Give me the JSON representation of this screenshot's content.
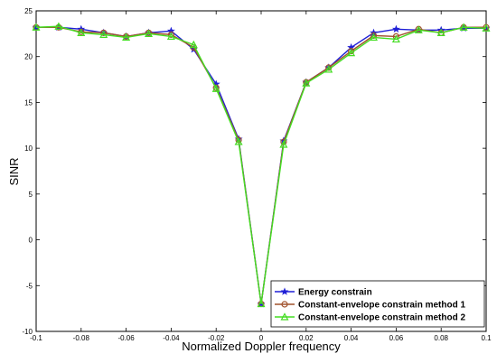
{
  "chart_data": {
    "type": "line",
    "title": "",
    "xlabel": "Normalized Doppler frequency",
    "ylabel": "SINR",
    "xlim": [
      -0.1,
      0.1
    ],
    "ylim": [
      -10,
      25
    ],
    "xticks": [
      -0.1,
      -0.08,
      -0.06,
      -0.04,
      -0.02,
      0,
      0.02,
      0.04,
      0.06,
      0.08,
      0.1
    ],
    "xtick_labels": [
      "-0.1",
      "-0.08",
      "-0.06",
      "-0.04",
      "-0.02",
      "0",
      "0.02",
      "0.04",
      "0.06",
      "0.08",
      "0.1"
    ],
    "yticks": [
      -10,
      -5,
      0,
      5,
      10,
      15,
      20,
      25
    ],
    "ytick_labels": [
      "-10",
      "-5",
      "0",
      "5",
      "10",
      "15",
      "20",
      "25"
    ],
    "grid": false,
    "legend_position": "bottom-right",
    "x": [
      -0.1,
      -0.09,
      -0.08,
      -0.07,
      -0.06,
      -0.05,
      -0.04,
      -0.03,
      -0.02,
      -0.01,
      0,
      0.01,
      0.02,
      0.03,
      0.04,
      0.05,
      0.06,
      0.07,
      0.08,
      0.09,
      0.1
    ],
    "series": [
      {
        "name": "Energy constrain",
        "color": "#1f1fd6",
        "marker": "star",
        "values": [
          23.2,
          23.2,
          23.0,
          22.6,
          22.2,
          22.6,
          22.8,
          20.8,
          17.0,
          11.0,
          -7.0,
          10.8,
          17.2,
          18.8,
          21.0,
          22.6,
          23.0,
          22.9,
          22.9,
          23.1,
          23.1
        ]
      },
      {
        "name": "Constant-envelope constrain method 1",
        "color": "#a0522d",
        "marker": "circle",
        "values": [
          23.2,
          23.2,
          22.7,
          22.6,
          22.2,
          22.6,
          22.4,
          21.0,
          16.6,
          10.9,
          -7.0,
          10.7,
          17.2,
          18.8,
          20.6,
          22.3,
          22.2,
          23.0,
          22.6,
          23.2,
          23.2
        ]
      },
      {
        "name": "Constant-envelope constrain method 2",
        "color": "#44dd22",
        "marker": "triangle",
        "values": [
          23.2,
          23.3,
          22.6,
          22.4,
          22.1,
          22.5,
          22.2,
          21.3,
          16.5,
          10.7,
          -7.0,
          10.4,
          17.1,
          18.6,
          20.4,
          22.1,
          21.9,
          22.9,
          22.6,
          23.2,
          23.1
        ]
      }
    ]
  }
}
